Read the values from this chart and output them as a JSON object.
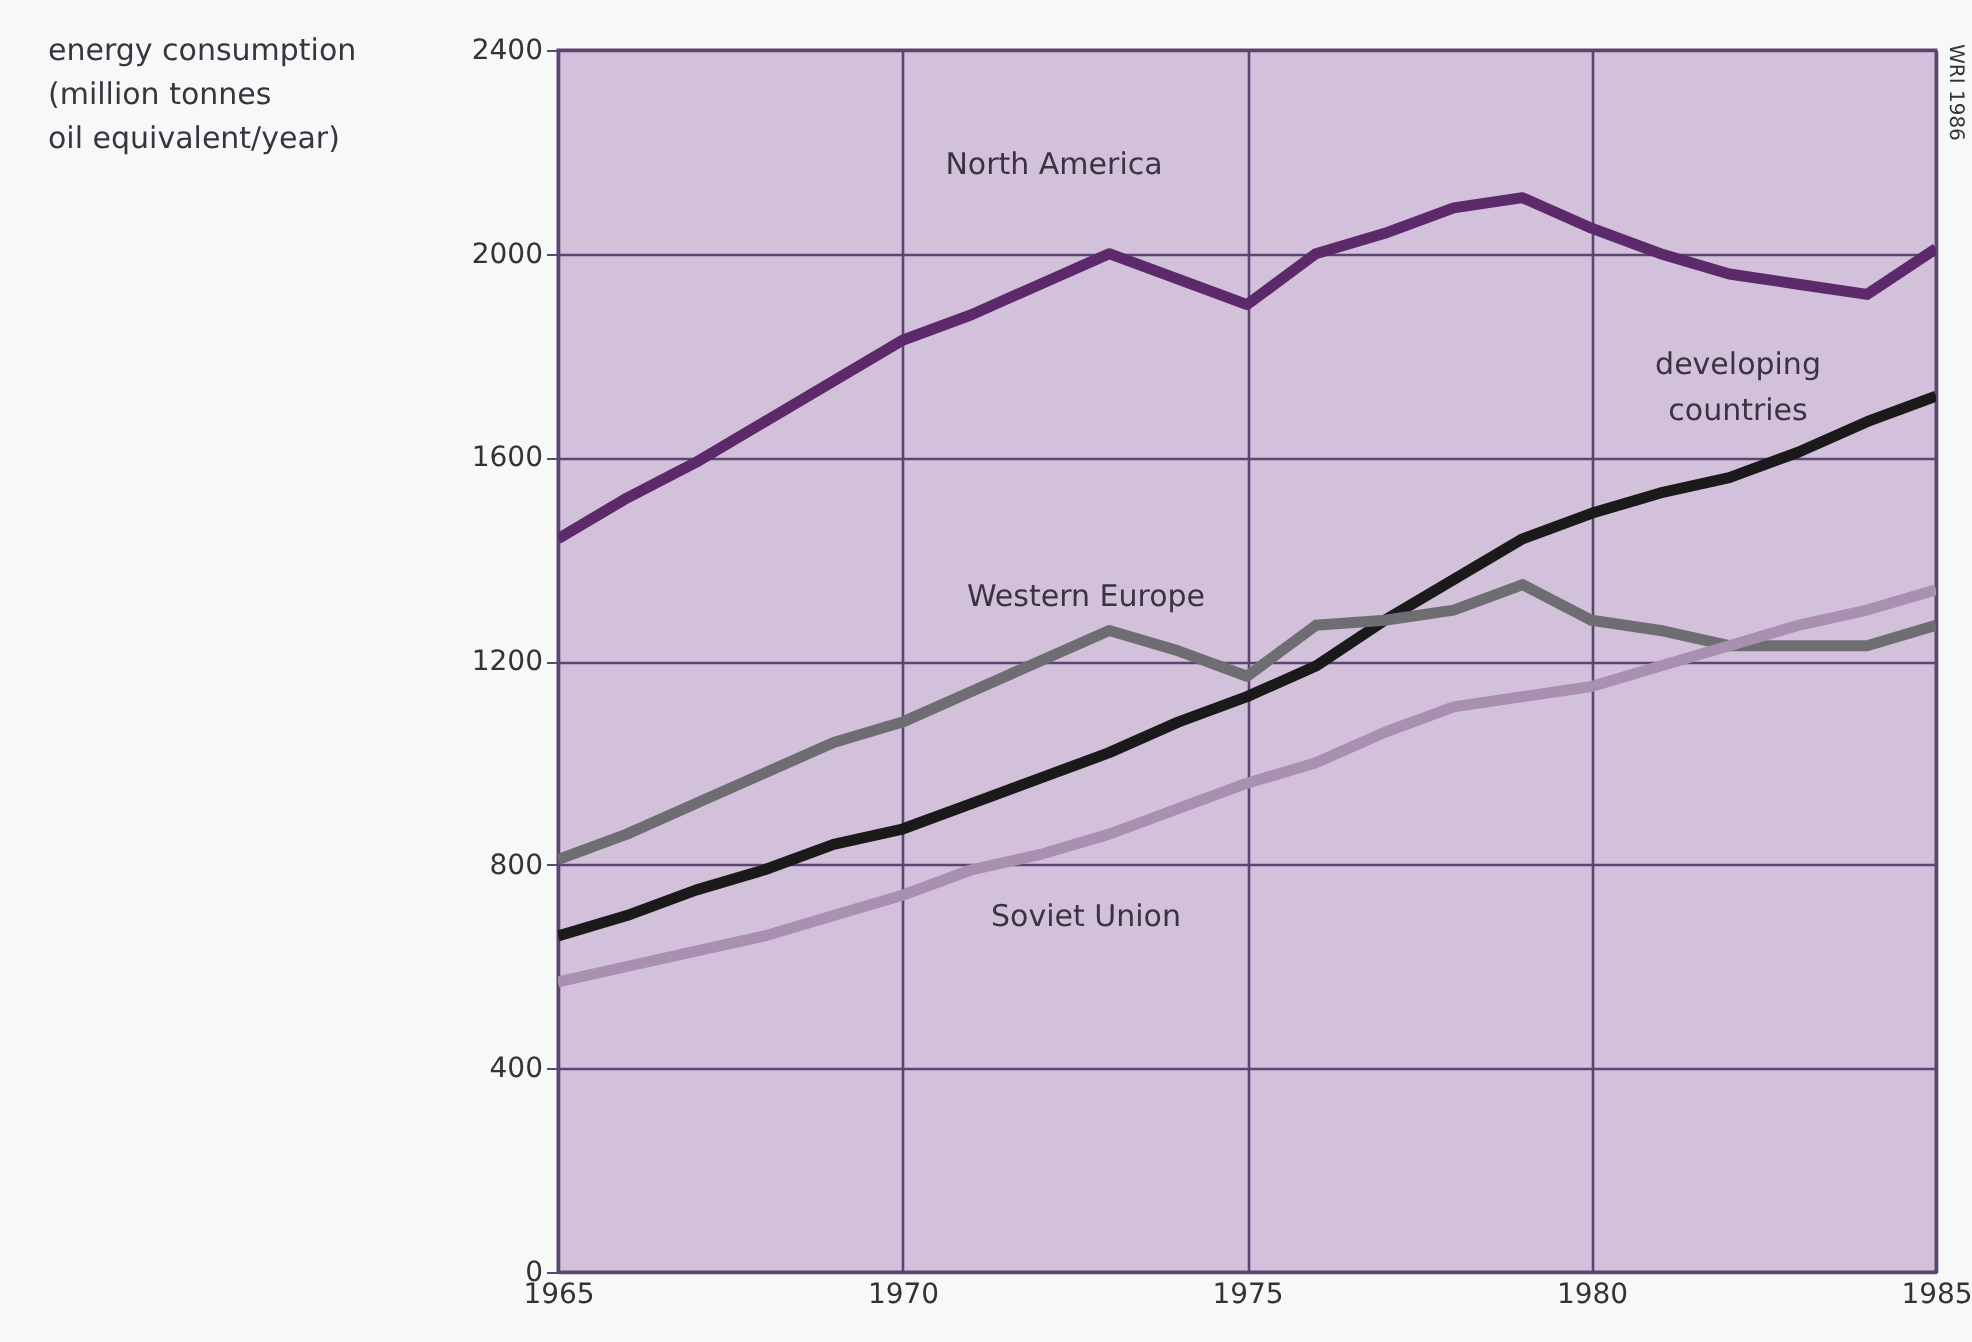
{
  "chart_data": {
    "type": "line",
    "ylabel": "energy consumption\n(million tonnes\noil equivalent/year)",
    "annotations": [
      "WRI 1986"
    ],
    "x": [
      1965,
      1966,
      1967,
      1968,
      1969,
      1970,
      1971,
      1972,
      1973,
      1974,
      1975,
      1976,
      1977,
      1978,
      1979,
      1980,
      1981,
      1982,
      1983,
      1984,
      1985
    ],
    "series": [
      {
        "name": "North America",
        "color": "#5c2a6a",
        "values": [
          1440,
          1520,
          1590,
          1670,
          1750,
          1830,
          1880,
          1940,
          2000,
          1950,
          1900,
          2000,
          2040,
          2090,
          2110,
          2050,
          2000,
          1960,
          1940,
          1920,
          2010
        ]
      },
      {
        "name": "developing countries",
        "color": "#1a1a1a",
        "values": [
          660,
          700,
          750,
          790,
          840,
          870,
          920,
          970,
          1020,
          1080,
          1130,
          1190,
          1280,
          1360,
          1440,
          1490,
          1530,
          1560,
          1610,
          1670,
          1720
        ]
      },
      {
        "name": "Western Europe",
        "color": "#6e6e72",
        "values": [
          810,
          860,
          920,
          980,
          1040,
          1080,
          1140,
          1200,
          1260,
          1220,
          1170,
          1270,
          1280,
          1300,
          1350,
          1280,
          1260,
          1230,
          1230,
          1230,
          1270
        ]
      },
      {
        "name": "Soviet Union",
        "color": "#a98fb0",
        "values": [
          570,
          600,
          630,
          660,
          700,
          740,
          790,
          820,
          860,
          910,
          960,
          1000,
          1060,
          1110,
          1130,
          1150,
          1190,
          1230,
          1270,
          1300,
          1340
        ]
      }
    ],
    "xlim": [
      1965,
      1985
    ],
    "xticks": [
      1965,
      1970,
      1975,
      1980,
      1985
    ],
    "ylim": [
      0,
      2400
    ],
    "yticks": [
      0,
      400,
      800,
      1200,
      1600,
      2000,
      2400
    ],
    "grid": true,
    "legend": false,
    "marker": "none",
    "line_style": "solid"
  }
}
